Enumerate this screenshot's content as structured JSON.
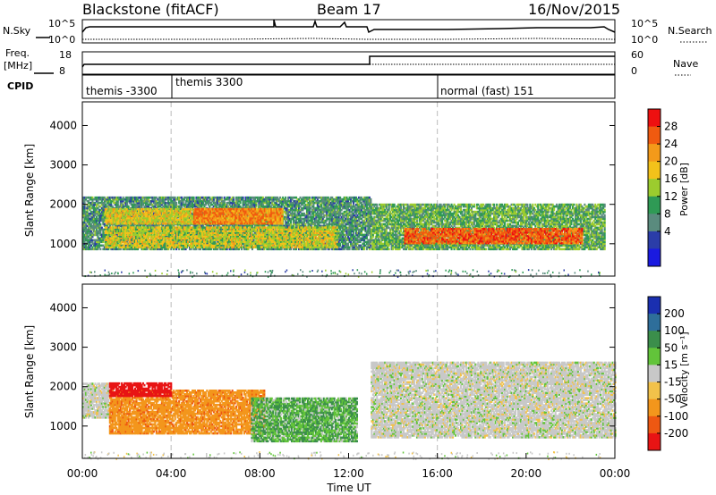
{
  "header": {
    "radar": "Blackstone (fitACF)",
    "beam": "Beam 17",
    "date": "16/Nov/2015"
  },
  "top_panels": {
    "nsky_label": "N.Sky",
    "nsky_ticks": [
      "10^5",
      "10^0"
    ],
    "nsearch_ticks": [
      "10^5",
      "10^0"
    ],
    "nsearch_label": "N.Search",
    "freq_label": "Freq.",
    "freq_unit": "[MHz]",
    "freq_ticks": [
      "18",
      "8"
    ],
    "nave_ticks": [
      "60",
      "0"
    ],
    "nave_label": "Nave",
    "cpid_label": "CPID",
    "cpid_segments": [
      {
        "name": "themis -3300",
        "start_hour": 0.0
      },
      {
        "name": "themis 3300",
        "start_hour": 4.0
      },
      {
        "name": "normal (fast) 151",
        "start_hour": 16.0
      }
    ]
  },
  "power_colorbar": {
    "label": "Power [dB]",
    "ticks": [
      "28",
      "24",
      "20",
      "16",
      "12",
      "8",
      "4"
    ],
    "colors": [
      "#ee1010",
      "#f05a10",
      "#f39a1a",
      "#f3c21a",
      "#9ccc2e",
      "#2f9a55",
      "#5a8b7e",
      "#2b3da8",
      "#1a1ae0"
    ]
  },
  "velocity_colorbar": {
    "label": "Velocity [m s⁻¹]",
    "ticks": [
      "200",
      "100",
      "50",
      "15",
      "-15",
      "-50",
      "-100",
      "-200"
    ],
    "colors": [
      "#1a2fb0",
      "#2e6e9a",
      "#3b8e4b",
      "#62c43a",
      "#c8c8c8",
      "#f2c24a",
      "#f3961c",
      "#ee5812",
      "#e81414"
    ]
  },
  "x_axis": {
    "label": "Time UT",
    "ticks": [
      "00:00",
      "04:00",
      "08:00",
      "12:00",
      "16:00",
      "20:00",
      "00:00"
    ]
  },
  "chart_data": [
    {
      "type": "heatmap",
      "title": "Power",
      "ylabel": "Slant Range [km]",
      "xlabel": "",
      "yticks": [
        "4000",
        "3000",
        "2000",
        "1000"
      ],
      "ylim": [
        180,
        4600
      ],
      "xlim": [
        0,
        24
      ],
      "colorbar_label": "Power [dB]",
      "bands": [
        {
          "t0": 0.0,
          "t1": 13.0,
          "r0": 850,
          "r1": 2200,
          "v": 10
        },
        {
          "t0": 1.0,
          "t1": 11.5,
          "r0": 900,
          "r1": 1400,
          "v": 16
        },
        {
          "t0": 1.0,
          "t1": 9.0,
          "r0": 1500,
          "r1": 1900,
          "v": 17
        },
        {
          "t0": 5.0,
          "t1": 9.0,
          "r0": 1500,
          "r1": 1900,
          "v": 22
        },
        {
          "t0": 13.0,
          "t1": 23.5,
          "r0": 850,
          "r1": 2000,
          "v": 12
        },
        {
          "t0": 14.5,
          "t1": 22.5,
          "r0": 1000,
          "r1": 1400,
          "v": 24
        }
      ]
    },
    {
      "type": "heatmap",
      "title": "Velocity",
      "ylabel": "Slant Range [km]",
      "xlabel": "Time UT",
      "yticks": [
        "4000",
        "3000",
        "2000",
        "1000"
      ],
      "ylim": [
        180,
        4600
      ],
      "xlim": [
        0,
        24
      ],
      "colorbar_label": "Velocity [m s⁻¹]",
      "bands": [
        {
          "t0": 0.0,
          "t1": 1.2,
          "r0": 1200,
          "r1": 2100,
          "v": 0
        },
        {
          "t0": 1.2,
          "t1": 8.2,
          "r0": 800,
          "r1": 1900,
          "v": -60
        },
        {
          "t0": 1.2,
          "t1": 4.0,
          "r0": 1750,
          "r1": 2100,
          "v": -180
        },
        {
          "t0": 7.6,
          "t1": 12.4,
          "r0": 600,
          "r1": 1700,
          "v": 30
        },
        {
          "t0": 13.0,
          "t1": 24.0,
          "r0": 700,
          "r1": 2600,
          "v": 0
        }
      ]
    }
  ]
}
